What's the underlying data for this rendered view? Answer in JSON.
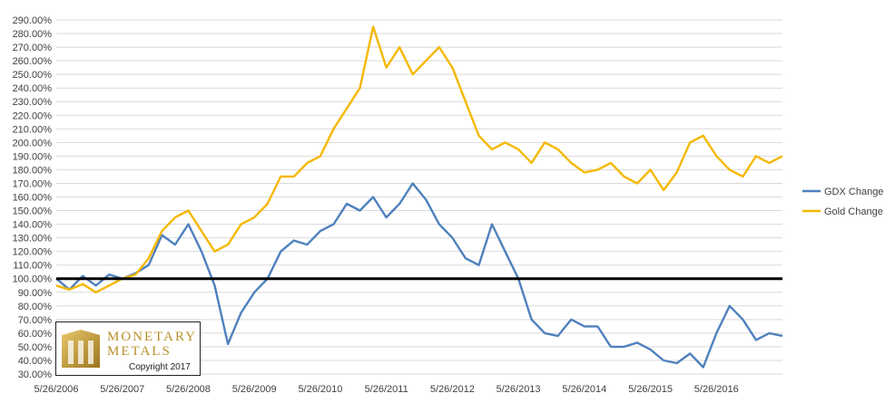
{
  "chart_data": {
    "type": "line",
    "title": "",
    "xlabel": "",
    "ylabel": "",
    "y_tick_labels": [
      "30.00%",
      "40.00%",
      "50.00%",
      "60.00%",
      "70.00%",
      "80.00%",
      "90.00%",
      "100.00%",
      "110.00%",
      "120.00%",
      "130.00%",
      "140.00%",
      "150.00%",
      "160.00%",
      "170.00%",
      "180.00%",
      "190.00%",
      "200.00%",
      "210.00%",
      "220.00%",
      "230.00%",
      "240.00%",
      "250.00%",
      "260.00%",
      "270.00%",
      "280.00%",
      "290.00%"
    ],
    "ylim": [
      30,
      290
    ],
    "x_tick_labels": [
      "5/26/2006",
      "5/26/2007",
      "5/26/2008",
      "5/26/2009",
      "5/26/2010",
      "5/26/2011",
      "5/26/2012",
      "5/26/2013",
      "5/26/2014",
      "5/26/2015",
      "5/26/2016"
    ],
    "xlim": [
      2006.4,
      2017.4
    ],
    "grid": "horizontal",
    "legend_position": "right",
    "reference_line": 100,
    "x": [
      2006.4,
      2006.6,
      2006.8,
      2007.0,
      2007.2,
      2007.4,
      2007.6,
      2007.8,
      2008.0,
      2008.2,
      2008.4,
      2008.6,
      2008.8,
      2009.0,
      2009.2,
      2009.4,
      2009.6,
      2009.8,
      2010.0,
      2010.2,
      2010.4,
      2010.6,
      2010.8,
      2011.0,
      2011.2,
      2011.4,
      2011.6,
      2011.8,
      2012.0,
      2012.2,
      2012.4,
      2012.6,
      2012.8,
      2013.0,
      2013.2,
      2013.4,
      2013.6,
      2013.8,
      2014.0,
      2014.2,
      2014.4,
      2014.6,
      2014.8,
      2015.0,
      2015.2,
      2015.4,
      2015.6,
      2015.8,
      2016.0,
      2016.2,
      2016.4,
      2016.6,
      2016.8,
      2017.0,
      2017.2,
      2017.4
    ],
    "series": [
      {
        "name": "GDX Change",
        "color": "#4f81bd",
        "values": [
          100,
          92,
          102,
          95,
          103,
          100,
          104,
          110,
          132,
          125,
          140,
          120,
          95,
          52,
          75,
          90,
          100,
          120,
          128,
          125,
          135,
          140,
          155,
          150,
          160,
          145,
          155,
          170,
          158,
          140,
          130,
          115,
          110,
          140,
          120,
          100,
          70,
          60,
          58,
          70,
          65,
          65,
          50,
          50,
          53,
          48,
          40,
          38,
          45,
          35,
          60,
          80,
          70,
          55,
          60,
          58
        ]
      },
      {
        "name": "Gold Change",
        "color": "#f5b800",
        "values": [
          95,
          92,
          96,
          90,
          95,
          100,
          103,
          115,
          135,
          145,
          150,
          135,
          120,
          125,
          140,
          145,
          155,
          175,
          175,
          185,
          190,
          210,
          225,
          240,
          285,
          255,
          270,
          250,
          260,
          270,
          255,
          230,
          205,
          195,
          200,
          195,
          185,
          200,
          195,
          185,
          178,
          180,
          185,
          175,
          170,
          180,
          165,
          178,
          200,
          205,
          190,
          180,
          175,
          190,
          185,
          190
        ]
      }
    ]
  },
  "logo": {
    "name_line1": "Monetary",
    "name_line2": "Metals",
    "copyright": "Copyright 2017"
  }
}
